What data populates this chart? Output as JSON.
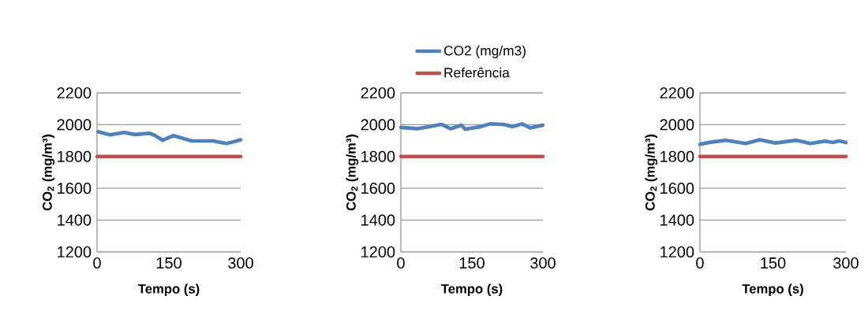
{
  "chart_data": [
    {
      "type": "line",
      "xlabel": "Tempo (s)",
      "ylabel": "CO$_{2}$ (mg/m³)",
      "xlim": [
        0,
        300
      ],
      "ylim": [
        1200,
        2200
      ],
      "xticks": [
        0,
        150,
        300
      ],
      "yticks": [
        1200,
        1400,
        1600,
        1800,
        2000,
        2200
      ],
      "grid": "y",
      "series": [
        {
          "color": "#4f81bd",
          "x": [
            2,
            27,
            57,
            79,
            109,
            120,
            137,
            159,
            198,
            242,
            270,
            286,
            300
          ],
          "values": [
            1956,
            1936,
            1951,
            1938,
            1946,
            1934,
            1902,
            1931,
            1898,
            1898,
            1882,
            1893,
            1905
          ]
        },
        {
          "color": "#c0504d",
          "x": [
            0,
            300
          ],
          "values": [
            1800,
            1800
          ]
        }
      ]
    },
    {
      "type": "line",
      "xlabel": "Tempo (s)",
      "ylabel": "CO$_{2}$ (mg/m³)",
      "xlim": [
        0,
        300
      ],
      "ylim": [
        1200,
        2200
      ],
      "xticks": [
        0,
        150,
        300
      ],
      "yticks": [
        1200,
        1400,
        1600,
        1800,
        2000,
        2200
      ],
      "grid": "y",
      "legend": "top",
      "series": [
        {
          "name": "CO2 (mg/m3)",
          "color": "#4f81bd",
          "x": [
            0,
            34,
            62,
            85,
            105,
            128,
            136,
            165,
            188,
            216,
            236,
            256,
            273,
            300
          ],
          "values": [
            1983,
            1975,
            1988,
            2002,
            1975,
            1997,
            1972,
            1985,
            2005,
            2002,
            1988,
            2005,
            1980,
            1997
          ]
        },
        {
          "name": "Referência",
          "color": "#c0504d",
          "x": [
            0,
            300
          ],
          "values": [
            1800,
            1800
          ]
        }
      ]
    },
    {
      "type": "line",
      "xlabel": "Tempo (s)",
      "ylabel": "CO$_{2}$ (mg/m³)",
      "xlim": [
        0,
        300
      ],
      "ylim": [
        1200,
        2200
      ],
      "xticks": [
        0,
        150,
        300
      ],
      "yticks": [
        1200,
        1400,
        1600,
        1800,
        2000,
        2200
      ],
      "grid": "y",
      "series": [
        {
          "color": "#4f81bd",
          "x": [
            0,
            22,
            54,
            94,
            123,
            155,
            198,
            227,
            257,
            273,
            286,
            300
          ],
          "values": [
            1877,
            1890,
            1902,
            1882,
            1905,
            1885,
            1902,
            1882,
            1897,
            1888,
            1898,
            1888
          ]
        },
        {
          "color": "#c0504d",
          "x": [
            0,
            300
          ],
          "values": [
            1800,
            1800
          ]
        }
      ]
    }
  ]
}
